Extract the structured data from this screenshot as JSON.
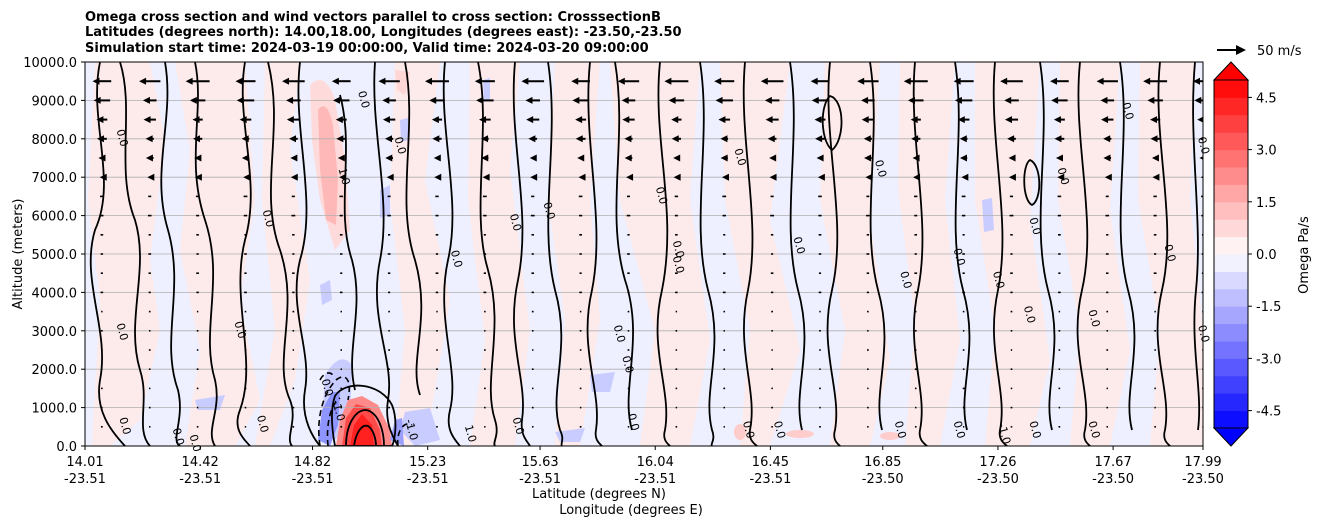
{
  "chart_data": {
    "type": "heatmap",
    "title_lines": [
      "Omega cross section and wind vectors parallel to cross section: CrosssectionB",
      "Latitudes (degrees north): 14.00,18.00, Longitudes (degrees east): -23.50,-23.50",
      "Simulation start time: 2024-03-19 00:00:00, Valid time: 2024-03-20 09:00:00"
    ],
    "ylabel": "Altitude (meters)",
    "xlabel_lines": [
      "Latitude (degrees N)",
      "Longitude (degrees E)"
    ],
    "ylim": [
      0,
      10000
    ],
    "xlim": [
      14.01,
      17.99
    ],
    "y_ticks": [
      "0.0",
      "1000.0",
      "2000.0",
      "3000.0",
      "4000.0",
      "5000.0",
      "6000.0",
      "7000.0",
      "8000.0",
      "9000.0",
      "10000.0"
    ],
    "y_tick_values": [
      0,
      1000,
      2000,
      3000,
      4000,
      5000,
      6000,
      7000,
      8000,
      9000,
      10000
    ],
    "x_ticks": [
      {
        "lat": "14.01",
        "lon": "-23.51"
      },
      {
        "lat": "14.42",
        "lon": "-23.51"
      },
      {
        "lat": "14.82",
        "lon": "-23.51"
      },
      {
        "lat": "15.23",
        "lon": "-23.51"
      },
      {
        "lat": "15.63",
        "lon": "-23.51"
      },
      {
        "lat": "16.04",
        "lon": "-23.51"
      },
      {
        "lat": "16.45",
        "lon": "-23.51"
      },
      {
        "lat": "16.85",
        "lon": "-23.50"
      },
      {
        "lat": "17.26",
        "lon": "-23.50"
      },
      {
        "lat": "17.67",
        "lon": "-23.50"
      },
      {
        "lat": "17.99",
        "lon": "-23.50"
      }
    ],
    "x_tick_values": [
      14.01,
      14.42,
      14.82,
      15.23,
      15.63,
      16.04,
      16.45,
      16.85,
      17.26,
      17.67,
      17.99
    ],
    "grid": "horizontal",
    "colorbar": {
      "label": "Omega Pa/s",
      "ticks": [
        "-4.5",
        "-3.0",
        "-1.5",
        "0.0",
        "1.5",
        "3.0",
        "4.5"
      ],
      "tick_values": [
        -4.5,
        -3.0,
        -1.5,
        0.0,
        1.5,
        3.0,
        4.5
      ],
      "range": [
        -5,
        5
      ],
      "colormap": "bwr",
      "extend": "both"
    },
    "quiver_key": {
      "label": "50 m/s",
      "value": 50
    },
    "contour_labels": [
      {
        "text": "0.0",
        "lat": 14.13,
        "alt": 8000
      },
      {
        "text": "0.0",
        "lat": 14.13,
        "alt": 2950
      },
      {
        "text": "0.0",
        "lat": 14.14,
        "alt": 500
      },
      {
        "text": "0.0",
        "lat": 14.33,
        "alt": 220
      },
      {
        "text": "0.0",
        "lat": 14.39,
        "alt": 50
      },
      {
        "text": "0.0",
        "lat": 14.55,
        "alt": 3000
      },
      {
        "text": "0.0",
        "lat": 14.65,
        "alt": 5900
      },
      {
        "text": "0.0",
        "lat": 14.63,
        "alt": 550
      },
      {
        "text": "1.0",
        "lat": 14.92,
        "alt": 7000
      },
      {
        "text": "0.0",
        "lat": 14.99,
        "alt": 9000
      },
      {
        "text": "0.0",
        "lat": 14.86,
        "alt": 1500
      },
      {
        "text": "-1.0",
        "lat": 14.9,
        "alt": 900
      },
      {
        "text": "-1.0",
        "lat": 15.16,
        "alt": 400
      },
      {
        "text": "0.0",
        "lat": 15.12,
        "alt": 7800
      },
      {
        "text": "0.0",
        "lat": 15.32,
        "alt": 4850
      },
      {
        "text": "1.0",
        "lat": 15.37,
        "alt": 300
      },
      {
        "text": "0.0",
        "lat": 15.53,
        "alt": 5800
      },
      {
        "text": "0.0",
        "lat": 15.65,
        "alt": 6100
      },
      {
        "text": "0.0",
        "lat": 15.54,
        "alt": 500
      },
      {
        "text": "0.0",
        "lat": 15.9,
        "alt": 2900
      },
      {
        "text": "0.0",
        "lat": 15.93,
        "alt": 2100
      },
      {
        "text": "0.0",
        "lat": 15.95,
        "alt": 600
      },
      {
        "text": "0.0",
        "lat": 16.05,
        "alt": 6500
      },
      {
        "text": "0.0",
        "lat": 16.11,
        "alt": 5100
      },
      {
        "text": "0.0",
        "lat": 16.11,
        "alt": 4700
      },
      {
        "text": "0.0",
        "lat": 16.33,
        "alt": 7500
      },
      {
        "text": "0.0",
        "lat": 16.36,
        "alt": 400
      },
      {
        "text": "0.0",
        "lat": 16.47,
        "alt": 400
      },
      {
        "text": "0.0",
        "lat": 16.54,
        "alt": 5200
      },
      {
        "text": "0.0",
        "lat": 16.83,
        "alt": 7200
      },
      {
        "text": "0.0",
        "lat": 16.92,
        "alt": 4300
      },
      {
        "text": "0.0",
        "lat": 16.9,
        "alt": 400
      },
      {
        "text": "0.0",
        "lat": 17.11,
        "alt": 4900
      },
      {
        "text": "0.0",
        "lat": 17.11,
        "alt": 400
      },
      {
        "text": "0.0",
        "lat": 17.25,
        "alt": 4300
      },
      {
        "text": "-1.0",
        "lat": 17.27,
        "alt": 300
      },
      {
        "text": "0.0",
        "lat": 17.38,
        "alt": 5700
      },
      {
        "text": "0.0",
        "lat": 17.36,
        "alt": 3400
      },
      {
        "text": "0.0",
        "lat": 17.38,
        "alt": 400
      },
      {
        "text": "0.0",
        "lat": 17.48,
        "alt": 7000
      },
      {
        "text": "0.0",
        "lat": 17.59,
        "alt": 3300
      },
      {
        "text": "0.0",
        "lat": 17.59,
        "alt": 400
      },
      {
        "text": "0.0",
        "lat": 17.71,
        "alt": 8700
      },
      {
        "text": "0.0",
        "lat": 17.86,
        "alt": 5000
      },
      {
        "text": "0.0",
        "lat": 17.98,
        "alt": 7800
      },
      {
        "text": "0.0",
        "lat": 17.98,
        "alt": 2900
      }
    ]
  }
}
